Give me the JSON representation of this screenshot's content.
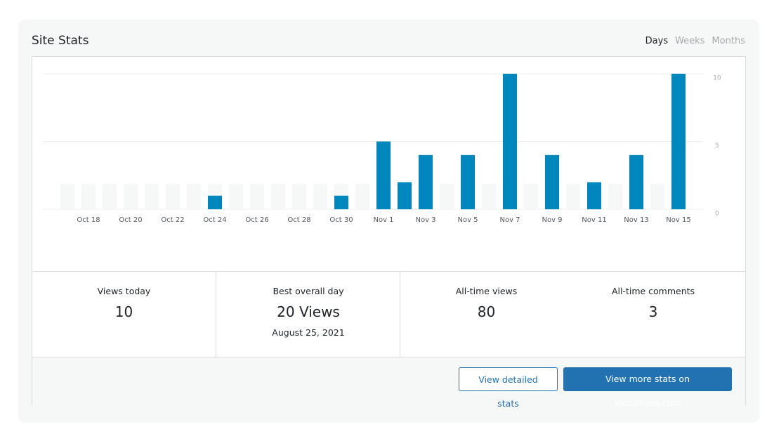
{
  "header": {
    "title": "Site Stats",
    "tabs": [
      "Days",
      "Weeks",
      "Months"
    ],
    "active_tab": 0
  },
  "chart_data": {
    "type": "bar",
    "categories": [
      null,
      "Oct 18",
      null,
      "Oct 20",
      null,
      "Oct 22",
      null,
      "Oct 24",
      null,
      "Oct 26",
      null,
      "Oct 28",
      null,
      "Oct 30",
      null,
      "Nov 1",
      null,
      "Nov 3",
      null,
      "Nov 5",
      null,
      "Nov 7",
      null,
      "Nov 9",
      null,
      "Nov 11",
      null,
      "Nov 13",
      null,
      "Nov 15"
    ],
    "values": [
      0,
      0,
      0,
      0,
      0,
      0,
      0,
      1,
      0,
      0,
      0,
      0,
      0,
      1,
      0,
      5,
      2,
      4,
      0,
      4,
      0,
      10,
      0,
      4,
      0,
      2,
      0,
      4,
      0,
      10
    ],
    "color": "#0087be",
    "ylim": [
      0,
      10
    ],
    "yticks": [
      0,
      5,
      10
    ],
    "grid": true
  },
  "stats": [
    {
      "label": "Views today",
      "value": "10"
    },
    {
      "label": "Best overall day",
      "value": "20 Views",
      "note": "August 25, 2021"
    },
    {
      "label": "All-time views",
      "value": "80"
    },
    {
      "label": "All-time comments",
      "value": "3"
    }
  ],
  "buttons": [
    "View detailed stats",
    "View more stats on WordPress.com"
  ]
}
